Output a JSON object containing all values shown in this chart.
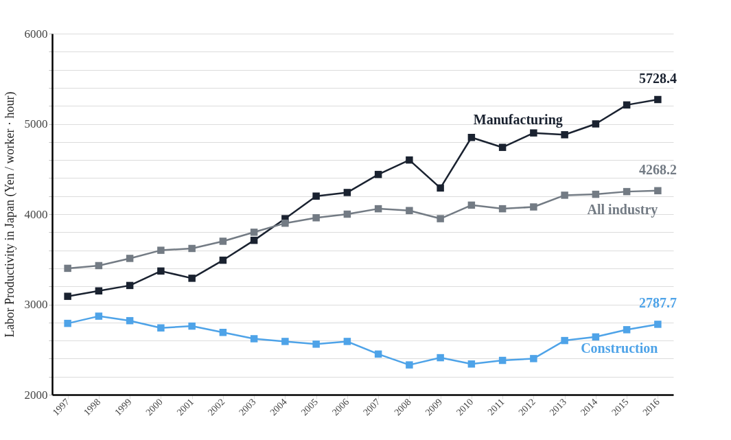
{
  "chart_data": {
    "type": "line",
    "ylabel": "Labor Productivity in Japan  (Yen / worker · hour)",
    "categories": [
      "1997",
      "1998",
      "1999",
      "2000",
      "2001",
      "2002",
      "2003",
      "2004",
      "2005",
      "2006",
      "2007",
      "2008",
      "2009",
      "2010",
      "2011",
      "2012",
      "2013",
      "2014",
      "2015",
      "2016"
    ],
    "series": [
      {
        "name": "Manufacturing",
        "color": "#1a2230",
        "values": [
          3090,
          3150,
          3210,
          3370,
          3290,
          3490,
          3710,
          3950,
          4200,
          4240,
          4440,
          4600,
          4290,
          4850,
          4740,
          4900,
          4880,
          5000,
          5210,
          5270
        ]
      },
      {
        "name": "All industry",
        "color": "#737b84",
        "values": [
          3400,
          3430,
          3510,
          3600,
          3620,
          3700,
          3800,
          3900,
          3960,
          4000,
          4060,
          4040,
          3950,
          4100,
          4060,
          4080,
          4210,
          4220,
          4250,
          4260
        ]
      },
      {
        "name": "Construction",
        "color": "#4ea3e8",
        "values": [
          2790,
          2870,
          2820,
          2740,
          2760,
          2690,
          2620,
          2590,
          2560,
          2590,
          2450,
          2330,
          2410,
          2340,
          2380,
          2400,
          2600,
          2640,
          2720,
          2780
        ]
      }
    ],
    "annotations": [
      "5728.4",
      "4268.2",
      "2787.7"
    ],
    "ylim": [
      2000,
      6000
    ],
    "yticks": [
      2000,
      {
        "value": 2200,
        "label": null
      },
      {
        "value": 2400,
        "label": null
      },
      {
        "value": 2600,
        "label": null
      },
      {
        "value": 2800,
        "label": null
      },
      3000,
      {
        "value": 3200,
        "label": null
      },
      {
        "value": 3400,
        "label": null
      },
      {
        "value": 3600,
        "label": null
      },
      {
        "value": 3800,
        "label": null
      },
      4000,
      {
        "value": 4200,
        "label": null
      },
      {
        "value": 4400,
        "label": null
      },
      {
        "value": 4600,
        "label": null
      },
      {
        "value": 4800,
        "label": null
      },
      5000,
      {
        "value": 5200,
        "label": null
      },
      {
        "value": 5400,
        "label": null
      },
      {
        "value": 5600,
        "label": null
      },
      {
        "value": 5800,
        "label": null
      },
      6000
    ],
    "grid": "y",
    "legend": false,
    "marker": "square",
    "line_style": "solid"
  }
}
